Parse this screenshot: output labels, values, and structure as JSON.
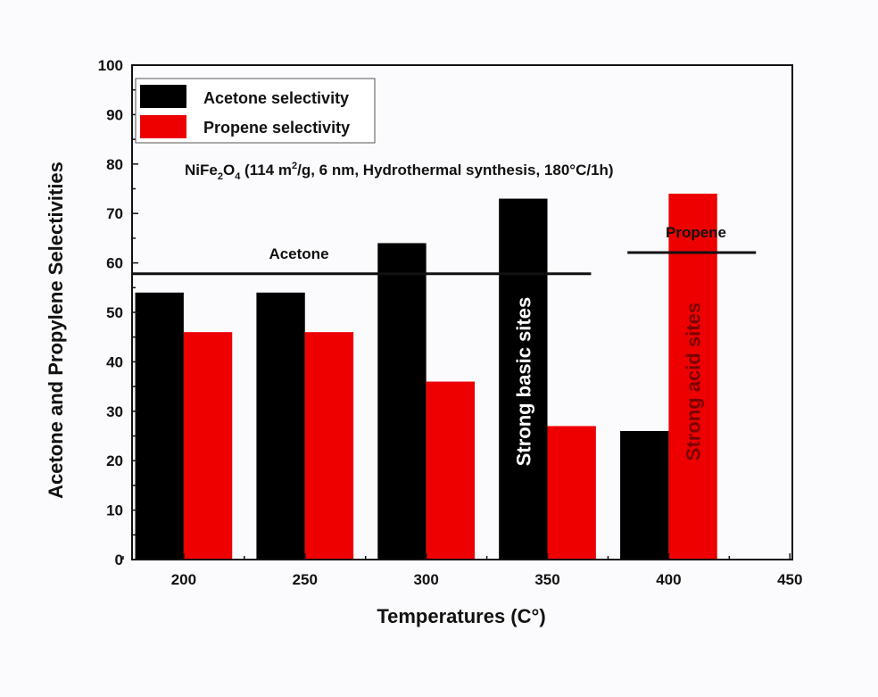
{
  "chart_data": {
    "type": "bar",
    "title": "",
    "xlabel": "Temperatures (C°)",
    "ylabel": "Acetone and Propylene Selectivities",
    "x": [
      200,
      250,
      300,
      350,
      400
    ],
    "series": [
      {
        "name": "Acetone selectivity",
        "color": "#000000",
        "values": [
          54,
          54,
          64,
          73,
          26
        ]
      },
      {
        "name": "Propene selectivity",
        "color": "#ee0000",
        "values": [
          46,
          46,
          36,
          27,
          74
        ]
      }
    ],
    "xticks": [
      200,
      250,
      300,
      350,
      400,
      450
    ],
    "yticks": [
      0,
      10,
      20,
      30,
      40,
      50,
      60,
      70,
      80,
      90,
      100
    ],
    "xlim": [
      178.7,
      451
    ],
    "ylim": [
      0,
      100
    ],
    "grid": false,
    "legend": "top-left",
    "subtitle": {
      "pre": "NiFe",
      "sub1": "2",
      "mid": "O",
      "sub2": "4",
      "post1": " (114 m",
      "sup": "2",
      "post2": "/g, 6 nm, Hydrothermal synthesis, 180°C/1h)"
    },
    "annotations": {
      "acetone_line": {
        "label": "Acetone",
        "y": 57.8,
        "x_range": [
          178.7,
          368
        ]
      },
      "propene_line": {
        "label": "Propene",
        "y": 62.1,
        "x_range": [
          383,
          436
        ]
      },
      "basic_sites": "Strong basic sites",
      "acid_sites": "Strong acid sites"
    }
  }
}
